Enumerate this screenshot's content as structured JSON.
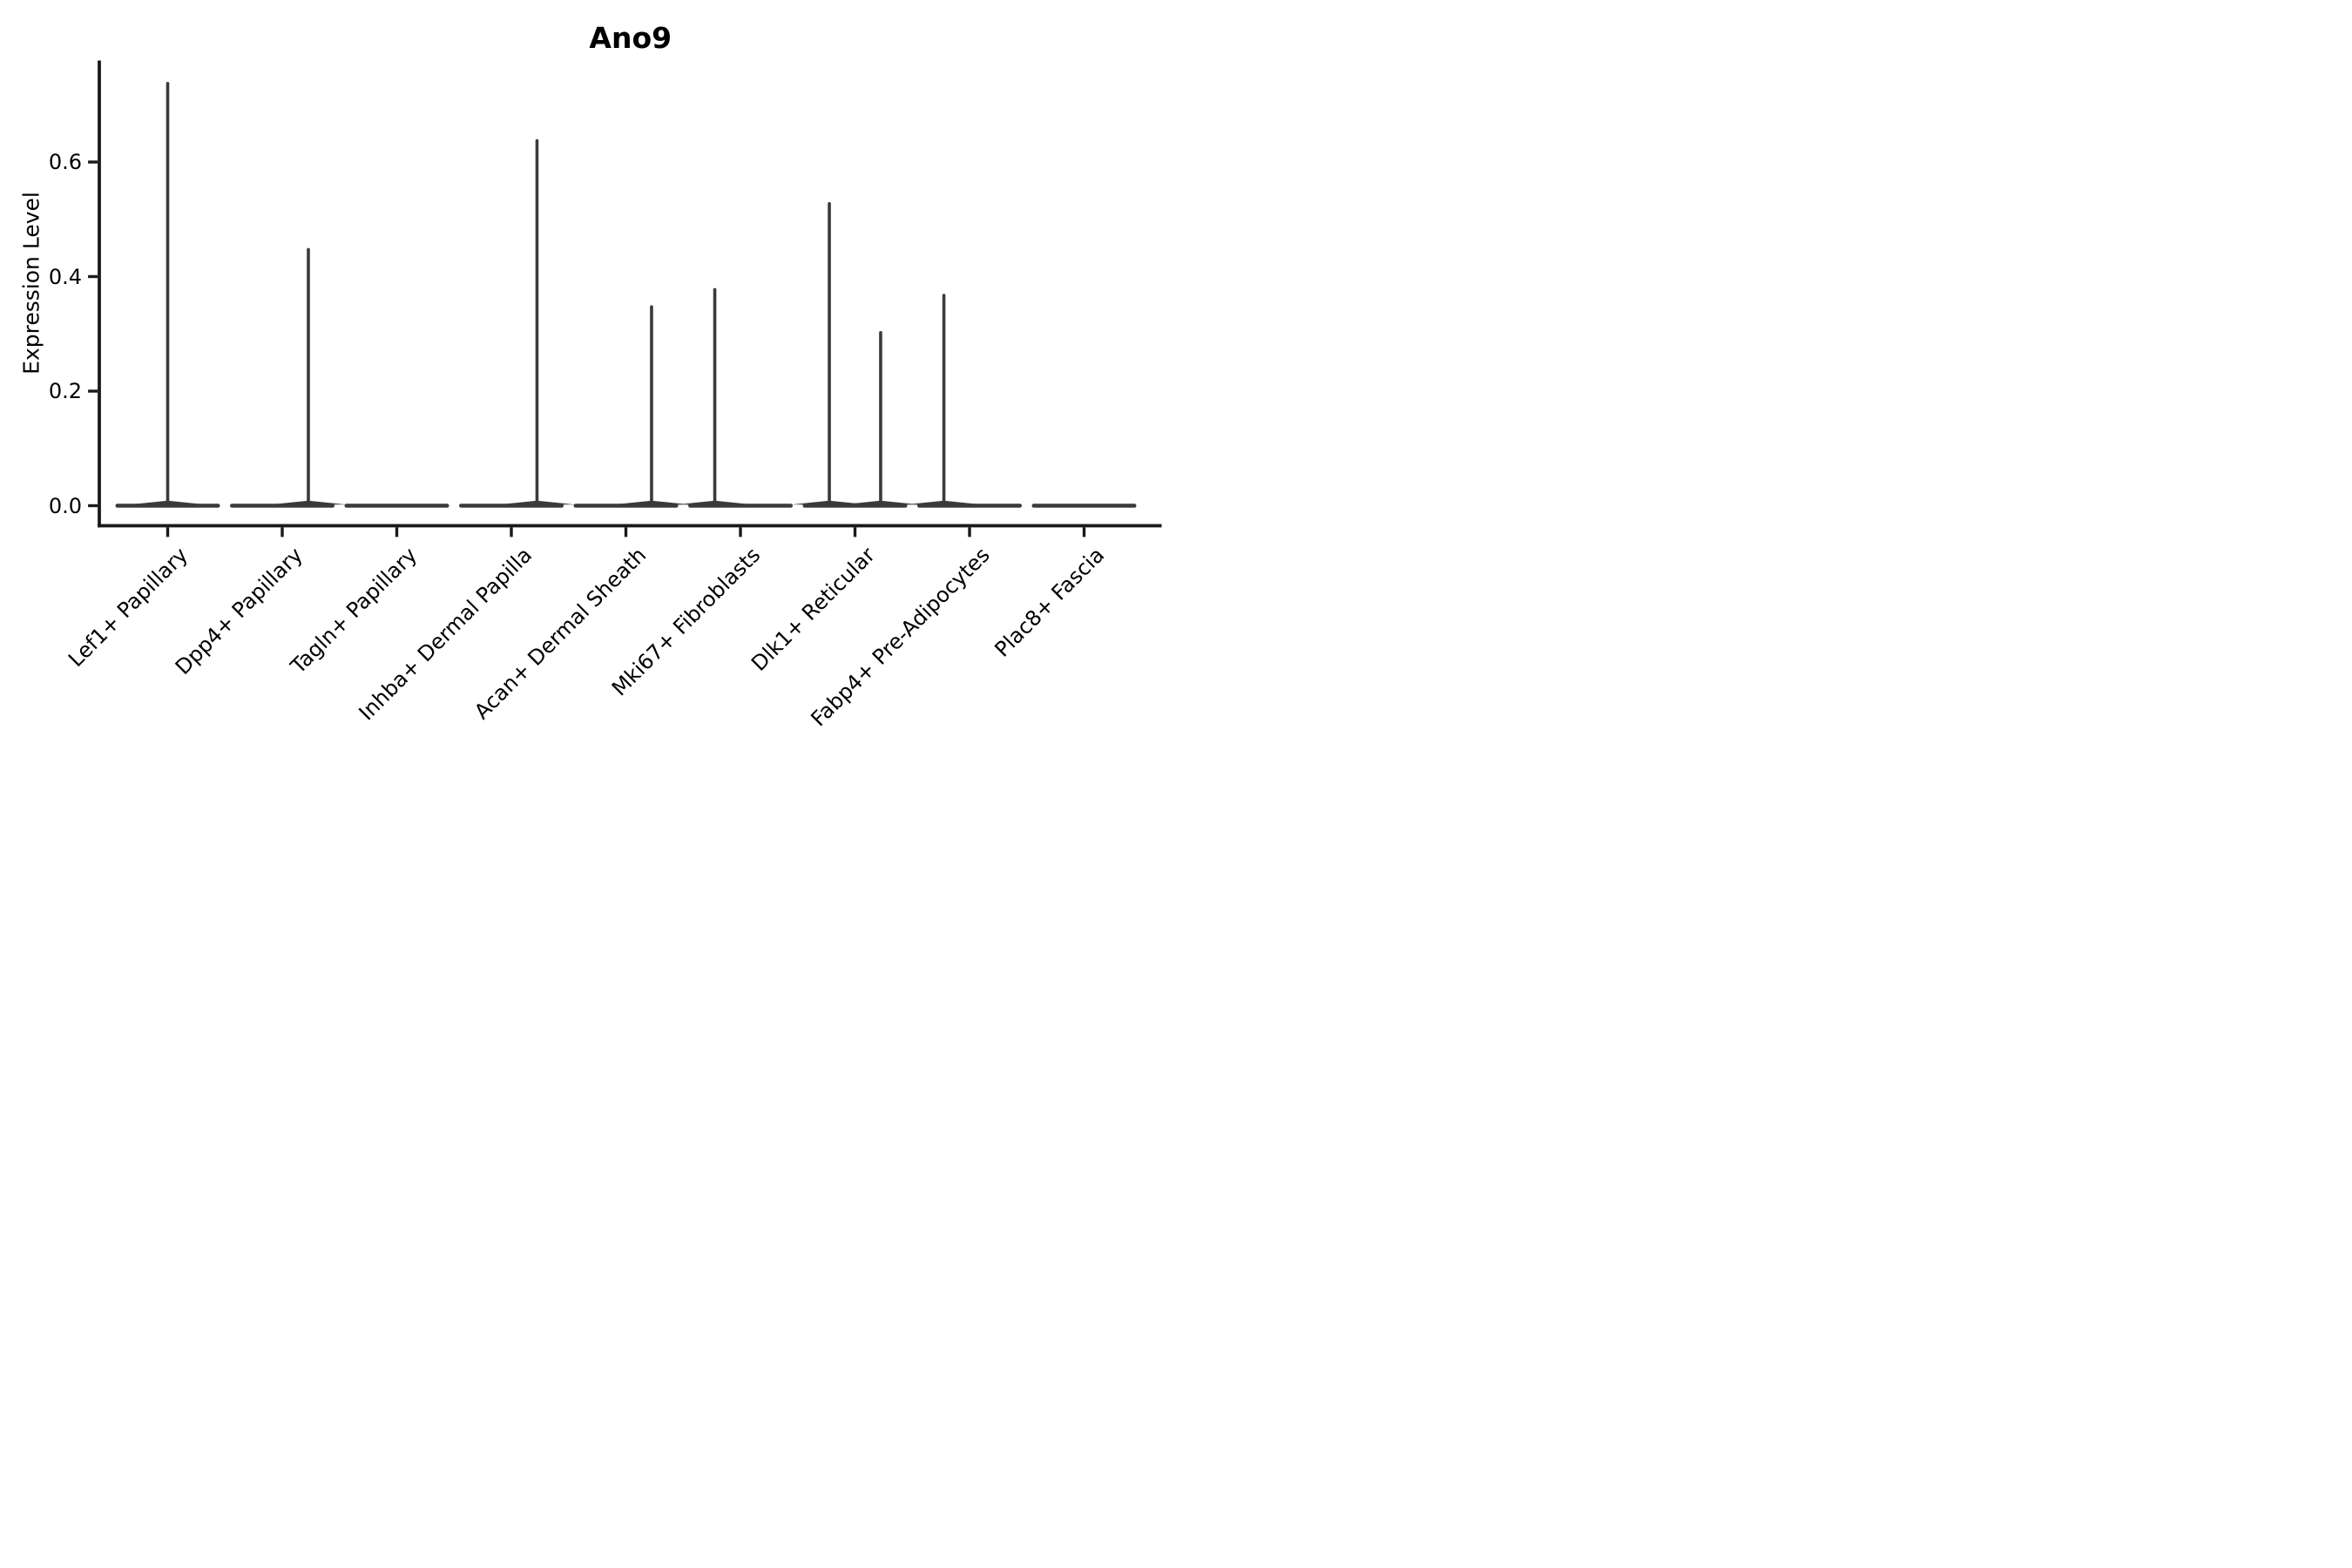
{
  "figure_title": "Ano9",
  "axes": {
    "ylabel": "Expression Level",
    "xlabel": "",
    "ytick_labels": [
      "0.0",
      "0.2",
      "0.4",
      "0.6"
    ]
  },
  "colors": {
    "background": "#ffffff",
    "axis": "#1a1a1a",
    "text": "#000000",
    "violin": "#3a3a3a"
  },
  "chart_data": {
    "type": "violin",
    "title": "Ano9",
    "ylabel": "Expression Level",
    "xlabel": "",
    "grid": false,
    "legend": "none",
    "ylim": [
      -0.035,
      0.777
    ],
    "yticks": [
      0.0,
      0.2,
      0.4,
      0.6
    ],
    "categories": [
      "Lef1+ Papillary",
      "Dpp4+ Papillary",
      "Tagln+ Papillary",
      "Inhba+ Dermal Papilla",
      "Acan+ Dermal Sheath",
      "Mki67+ Fibroblasts",
      "Dlk1+ Reticular",
      "Fabp4+ Pre-Adipocytes",
      "Plac8+ Fascia"
    ],
    "baseline_value": 0.0,
    "violin_body_halfwidth_frac": 0.457,
    "series": [
      {
        "category": "Lef1+ Papillary",
        "max_values": [
          0.74
        ],
        "spike_offset_fracs": [
          0.0
        ]
      },
      {
        "category": "Dpp4+ Papillary",
        "max_values": [
          0.45
        ],
        "spike_offset_fracs": [
          0.228
        ]
      },
      {
        "category": "Tagln+ Papillary",
        "max_values": [],
        "spike_offset_fracs": []
      },
      {
        "category": "Inhba+ Dermal Papilla",
        "max_values": [
          0.64
        ],
        "spike_offset_fracs": [
          0.224
        ]
      },
      {
        "category": "Acan+ Dermal Sheath",
        "max_values": [
          0.35
        ],
        "spike_offset_fracs": [
          0.224
        ]
      },
      {
        "category": "Mki67+ Fibroblasts",
        "max_values": [
          0.38
        ],
        "spike_offset_fracs": [
          -0.224
        ]
      },
      {
        "category": "Dlk1+ Reticular",
        "max_values": [
          0.53,
          0.305
        ],
        "spike_offset_fracs": [
          -0.224,
          0.224
        ]
      },
      {
        "category": "Fabp4+ Pre-Adipocytes",
        "max_values": [
          0.37
        ],
        "spike_offset_fracs": [
          -0.224
        ]
      },
      {
        "category": "Plac8+ Fascia",
        "max_values": [],
        "spike_offset_fracs": []
      }
    ]
  }
}
